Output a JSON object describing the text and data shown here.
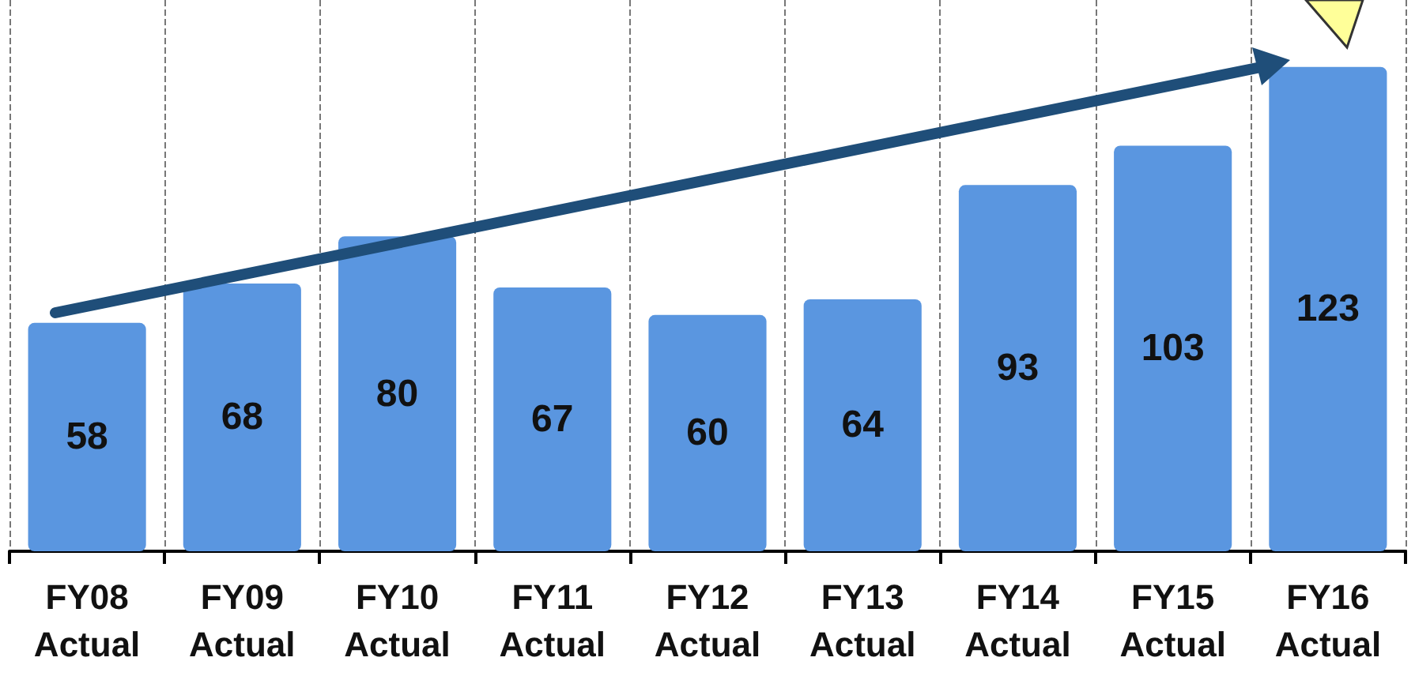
{
  "chart_data": {
    "type": "bar",
    "categories": [
      "FY08\nActual",
      "FY09\nActual",
      "FY10\nActual",
      "FY11\nActual",
      "FY12\nActual",
      "FY13\nActual",
      "FY14\nActual",
      "FY15\nActual",
      "FY16\nActual"
    ],
    "values": [
      58,
      68,
      80,
      67,
      60,
      64,
      93,
      103,
      123
    ],
    "color": "#5a96e0",
    "tick_labels": "x",
    "data_labels": true,
    "grid": "x"
  }
}
